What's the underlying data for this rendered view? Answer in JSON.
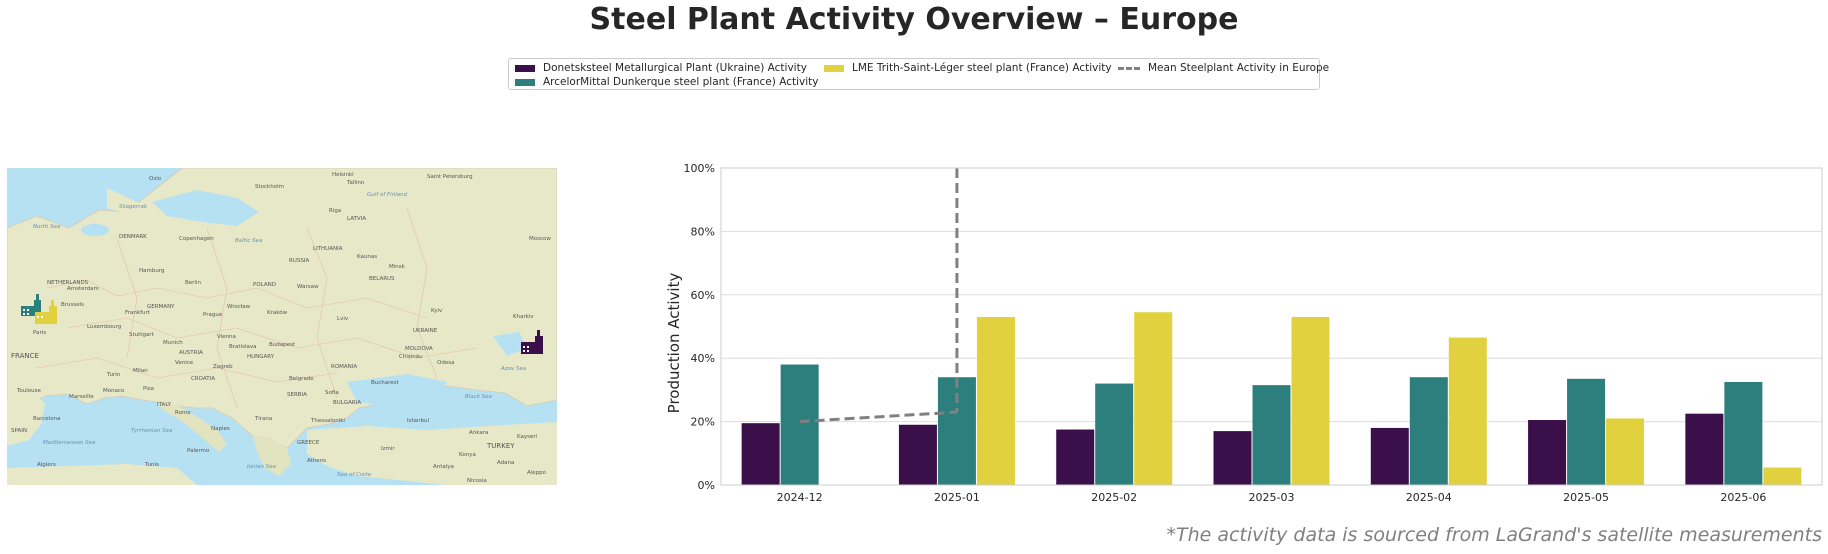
{
  "title": "Steel Plant Activity Overview – Europe",
  "footnote": "*The activity data is sourced from LaGrand's satellite measurements",
  "legend": {
    "donetsk": "Donetsksteel Metallurgical Plant (Ukraine) Activity",
    "arcelor": "ArcelorMittal Dunkerque steel plant (France) Activity",
    "lme": "LME Trith-Saint-Léger steel plant (France) Activity",
    "mean": "Mean Steelplant Activity in Europe"
  },
  "colors": {
    "donetsk": "#3b0f4a",
    "arcelor": "#2c7f7c",
    "lme": "#e1d13f",
    "mean": "#808080"
  },
  "map_labels": {
    "north_sea": "North Sea",
    "baltic_sea": "Baltic Sea",
    "denmark": "DENMARK",
    "copenhagen": "Copenhagen",
    "stockholm": "Stockholm",
    "helsinki": "Helsinki",
    "tallinn": "Tallinn",
    "oslo": "Oslo",
    "st_petersburg": "Saint Petersburg",
    "netherlands": "NETHERLANDS",
    "amsterdam": "Amsterdam",
    "hamburg": "Hamburg",
    "berlin": "Berlin",
    "poland": "POLAND",
    "warsaw": "Warsaw",
    "belarus": "BELARUS",
    "minsk": "Minsk",
    "moscow": "Moscow",
    "lithuania": "LITHUANIA",
    "latvia": "LATVIA",
    "riga": "Riga",
    "russia": "RUSSIA",
    "brussels": "Brussels",
    "germany": "GERMANY",
    "frankfurt": "Frankfurt",
    "prague": "Prague",
    "krakow": "Kraków",
    "lviv": "Lviv",
    "kyiv": "Kyiv",
    "kharkiv": "Kharkiv",
    "ukraine": "UKRAINE",
    "paris": "Paris",
    "luxembourg": "Luxembourg",
    "stuttgart": "Stuttgart",
    "munich": "Munich",
    "vienna": "Vienna",
    "austria": "AUSTRIA",
    "budapest": "Budapest",
    "hungary": "HUNGARY",
    "moldova": "MOLDOVA",
    "romania": "ROMANIA",
    "france": "FRANCE",
    "milan": "Milan",
    "turin": "Turin",
    "zagreb": "Zagreb",
    "belgrade": "Belgrade",
    "croatia": "CROATIA",
    "bucharest": "Bucharest",
    "toulouse": "Toulouse",
    "marseille": "Marseille",
    "monaco": "Monaco",
    "italy": "ITALY",
    "rome": "Rome",
    "serbia": "SERBIA",
    "bulgaria": "BULGARIA",
    "sofia": "Sofia",
    "black_sea": "Black Sea",
    "azov_sea": "Azov Sea",
    "barcelona": "Barcelona",
    "spain": "SPAIN",
    "mediterranean": "Mediterranean Sea",
    "naples": "Naples",
    "tirana": "Tirana",
    "greece": "GREECE",
    "istanbul": "Istanbul",
    "ankara": "Ankara",
    "turkey": "TURKEY",
    "algiers": "Algiers",
    "tunis": "Tunis",
    "palermo": "Palermo",
    "athens": "Athens",
    "izmir": "Izmir",
    "antalya": "Antalya",
    "adana": "Adana",
    "aleppo": "Aleppo",
    "nicosia": "Nicosia",
    "ionian_sea": "Ionian Sea",
    "crete_sea": "Sea of Crete",
    "tyrrhenian": "Tyrrhenian Sea",
    "gulf_finland": "Gulf of Finland",
    "skagerrak": "Skagerrak",
    "kaunas": "Kaunas",
    "wroclaw": "Wrocław",
    "bratislava": "Bratislava",
    "odesa": "Odesa",
    "chisinau": "Chișinău",
    "venice": "Venice",
    "pisa": "Pisa",
    "thessaloniki": "Thessaloniki",
    "konya": "Konya",
    "kayseri": "Kayseri"
  },
  "chart_data": {
    "type": "bar",
    "categories": [
      "2024-12",
      "2025-01",
      "2025-02",
      "2025-03",
      "2025-04",
      "2025-05",
      "2025-06"
    ],
    "series": [
      {
        "name": "Donetsksteel Metallurgical Plant (Ukraine) Activity",
        "values": [
          19.5,
          19,
          17.5,
          17,
          18,
          20.5,
          22.5
        ]
      },
      {
        "name": "ArcelorMittal Dunkerque steel plant (France) Activity",
        "values": [
          38,
          34,
          32,
          31.5,
          34,
          33.5,
          32.5
        ]
      },
      {
        "name": "LME Trith-Saint-Léger steel plant (France) Activity",
        "values": [
          null,
          53,
          54.5,
          53,
          46.5,
          21,
          5.5
        ]
      }
    ],
    "mean_line": {
      "name": "Mean Steelplant Activity in Europe",
      "points": [
        {
          "x": "2024-12",
          "y": 20
        },
        {
          "x": "2025-01",
          "y": 23
        }
      ],
      "vertical_at": "2025-01"
    },
    "ylabel": "Production Activity",
    "xlabel": "",
    "ylim": [
      0,
      100
    ],
    "yticks": [
      "0%",
      "20%",
      "40%",
      "60%",
      "80%",
      "100%"
    ],
    "grid": true,
    "legend_position": "top-center"
  }
}
